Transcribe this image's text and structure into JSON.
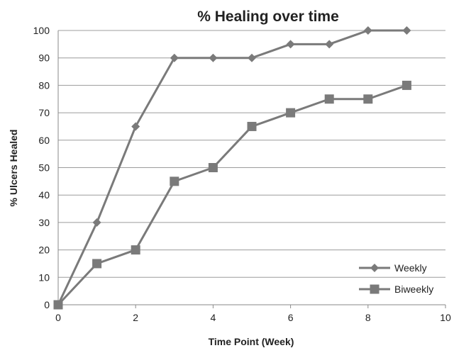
{
  "chart_data": {
    "type": "line",
    "title": "% Healing over time",
    "xlabel": "Time Point (Week)",
    "ylabel": "% Ulcers Healed",
    "xlim": [
      0,
      10
    ],
    "ylim": [
      0,
      100
    ],
    "x_ticks": [
      0,
      2,
      4,
      6,
      8,
      10
    ],
    "y_ticks": [
      0,
      10,
      20,
      30,
      40,
      50,
      60,
      70,
      80,
      90,
      100
    ],
    "grid": "horizontal",
    "legend_position": "bottom-right",
    "series": [
      {
        "name": "Weekly",
        "marker": "diamond",
        "color": "#7a7a7a",
        "x": [
          0,
          1,
          2,
          3,
          4,
          5,
          6,
          7,
          8,
          9
        ],
        "y": [
          0,
          30,
          65,
          90,
          90,
          90,
          95,
          95,
          100,
          100
        ]
      },
      {
        "name": "Biweekly",
        "marker": "square",
        "color": "#7a7a7a",
        "x": [
          0,
          1,
          2,
          3,
          4,
          5,
          6,
          7,
          8,
          9
        ],
        "y": [
          0,
          15,
          20,
          45,
          50,
          65,
          70,
          75,
          75,
          80
        ]
      }
    ]
  }
}
